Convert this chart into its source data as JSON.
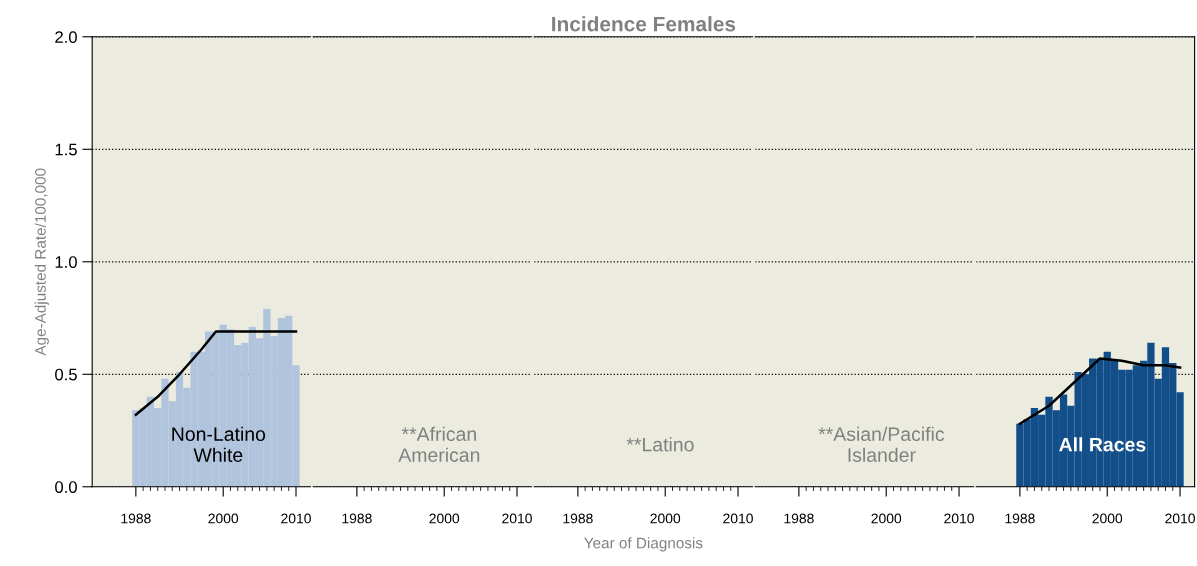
{
  "chart_data": [
    {
      "type": "bar",
      "ylabel": "Age-Adjusted Rate/100,000",
      "annotations": [
        "Non-Latino\nWhite"
      ],
      "x": [
        1988,
        1989,
        1990,
        1991,
        1992,
        1993,
        1994,
        1995,
        1996,
        1997,
        1998,
        1999,
        2000,
        2001,
        2002,
        2003,
        2004,
        2005,
        2006,
        2007,
        2008,
        2009,
        2010
      ],
      "series": [
        {
          "color": "#b0c4de",
          "values": [
            0.34,
            0.35,
            0.4,
            0.35,
            0.48,
            0.38,
            0.51,
            0.44,
            0.6,
            0.6,
            0.69,
            0.69,
            0.72,
            0.7,
            0.63,
            0.64,
            0.71,
            0.66,
            0.79,
            0.67,
            0.75,
            0.76,
            0.54
          ]
        },
        {
          "type": "line",
          "color": "#000000",
          "x": [
            1988,
            1991,
            1994,
            1997,
            1999,
            2010
          ],
          "values": [
            0.32,
            0.4,
            0.5,
            0.61,
            0.69,
            0.69
          ]
        }
      ],
      "xlim": [
        1982,
        2012
      ],
      "xticks": [
        1988,
        {
          "value": 1989,
          "label": null
        },
        {
          "value": 1990,
          "label": null
        },
        {
          "value": 1991,
          "label": null
        },
        {
          "value": 1992,
          "label": null
        },
        {
          "value": 1993,
          "label": null
        },
        {
          "value": 1994,
          "label": null
        },
        {
          "value": 1995,
          "label": null
        },
        {
          "value": 1996,
          "label": null
        },
        {
          "value": 1997,
          "label": null
        },
        {
          "value": 1998,
          "label": null
        },
        {
          "value": 1999,
          "label": null
        },
        2000,
        {
          "value": 2001,
          "label": null
        },
        {
          "value": 2002,
          "label": null
        },
        {
          "value": 2003,
          "label": null
        },
        {
          "value": 2004,
          "label": null
        },
        {
          "value": 2005,
          "label": null
        },
        {
          "value": 2006,
          "label": null
        },
        {
          "value": 2007,
          "label": null
        },
        {
          "value": 2008,
          "label": null
        },
        {
          "value": 2009,
          "label": null
        },
        2010
      ],
      "ylim": [
        0,
        2
      ],
      "yticks": [
        {
          "value": 0,
          "label": "0.0"
        },
        {
          "value": 0.5,
          "label": "0.5"
        },
        {
          "value": 1,
          "label": "1.0"
        },
        {
          "value": 1.5,
          "label": "1.5"
        },
        {
          "value": 2,
          "label": "2.0"
        }
      ],
      "grid": "y",
      "legend": false
    },
    {
      "type": "bar",
      "annotations": [
        "**African\nAmerican"
      ],
      "xlim": [
        1982,
        2012
      ],
      "xticks": [
        1988,
        {
          "value": 1989,
          "label": null
        },
        {
          "value": 1990,
          "label": null
        },
        {
          "value": 1991,
          "label": null
        },
        {
          "value": 1992,
          "label": null
        },
        {
          "value": 1993,
          "label": null
        },
        {
          "value": 1994,
          "label": null
        },
        {
          "value": 1995,
          "label": null
        },
        {
          "value": 1996,
          "label": null
        },
        {
          "value": 1997,
          "label": null
        },
        {
          "value": 1998,
          "label": null
        },
        {
          "value": 1999,
          "label": null
        },
        2000,
        {
          "value": 2001,
          "label": null
        },
        {
          "value": 2002,
          "label": null
        },
        {
          "value": 2003,
          "label": null
        },
        {
          "value": 2004,
          "label": null
        },
        {
          "value": 2005,
          "label": null
        },
        {
          "value": 2006,
          "label": null
        },
        {
          "value": 2007,
          "label": null
        },
        {
          "value": 2008,
          "label": null
        },
        {
          "value": 2009,
          "label": null
        },
        2010
      ],
      "ylim": [
        0,
        2
      ],
      "tick_labels": "x",
      "grid": "y",
      "legend": false
    },
    {
      "type": "bar",
      "title": "Incidence Females",
      "xlabel": "Year of Diagnosis",
      "annotations": [
        "**Latino"
      ],
      "xlim": [
        1982,
        2012
      ],
      "xticks": [
        1988,
        {
          "value": 1989,
          "label": null
        },
        {
          "value": 1990,
          "label": null
        },
        {
          "value": 1991,
          "label": null
        },
        {
          "value": 1992,
          "label": null
        },
        {
          "value": 1993,
          "label": null
        },
        {
          "value": 1994,
          "label": null
        },
        {
          "value": 1995,
          "label": null
        },
        {
          "value": 1996,
          "label": null
        },
        {
          "value": 1997,
          "label": null
        },
        {
          "value": 1998,
          "label": null
        },
        {
          "value": 1999,
          "label": null
        },
        2000,
        {
          "value": 2001,
          "label": null
        },
        {
          "value": 2002,
          "label": null
        },
        {
          "value": 2003,
          "label": null
        },
        {
          "value": 2004,
          "label": null
        },
        {
          "value": 2005,
          "label": null
        },
        {
          "value": 2006,
          "label": null
        },
        {
          "value": 2007,
          "label": null
        },
        {
          "value": 2008,
          "label": null
        },
        {
          "value": 2009,
          "label": null
        },
        2010
      ],
      "ylim": [
        0,
        2
      ],
      "tick_labels": "x",
      "grid": "y",
      "legend": false
    },
    {
      "type": "bar",
      "annotations": [
        "**Asian/Pacific\nIslander"
      ],
      "xlim": [
        1982,
        2012
      ],
      "xticks": [
        1988,
        {
          "value": 1989,
          "label": null
        },
        {
          "value": 1990,
          "label": null
        },
        {
          "value": 1991,
          "label": null
        },
        {
          "value": 1992,
          "label": null
        },
        {
          "value": 1993,
          "label": null
        },
        {
          "value": 1994,
          "label": null
        },
        {
          "value": 1995,
          "label": null
        },
        {
          "value": 1996,
          "label": null
        },
        {
          "value": 1997,
          "label": null
        },
        {
          "value": 1998,
          "label": null
        },
        {
          "value": 1999,
          "label": null
        },
        2000,
        {
          "value": 2001,
          "label": null
        },
        {
          "value": 2002,
          "label": null
        },
        {
          "value": 2003,
          "label": null
        },
        {
          "value": 2004,
          "label": null
        },
        {
          "value": 2005,
          "label": null
        },
        {
          "value": 2006,
          "label": null
        },
        {
          "value": 2007,
          "label": null
        },
        {
          "value": 2008,
          "label": null
        },
        {
          "value": 2009,
          "label": null
        },
        2010
      ],
      "ylim": [
        0,
        2
      ],
      "tick_labels": "x",
      "grid": "y",
      "legend": false
    },
    {
      "type": "bar",
      "annotations": [
        "All Races"
      ],
      "x": [
        1988,
        1989,
        1990,
        1991,
        1992,
        1993,
        1994,
        1995,
        1996,
        1997,
        1998,
        1999,
        2000,
        2001,
        2002,
        2003,
        2004,
        2005,
        2006,
        2007,
        2008,
        2009,
        2010
      ],
      "series": [
        {
          "color": "#124e8a",
          "values": [
            0.28,
            0.3,
            0.35,
            0.32,
            0.4,
            0.34,
            0.41,
            0.36,
            0.51,
            0.5,
            0.57,
            0.57,
            0.6,
            0.56,
            0.52,
            0.52,
            0.54,
            0.56,
            0.64,
            0.48,
            0.62,
            0.55,
            0.42
          ]
        },
        {
          "type": "line",
          "color": "#000000",
          "x": [
            1988,
            1992,
            1995,
            1999,
            2002,
            2005,
            2008,
            2010
          ],
          "values": [
            0.28,
            0.36,
            0.45,
            0.57,
            0.56,
            0.54,
            0.54,
            0.53
          ]
        }
      ],
      "xlim": [
        1982,
        2012
      ],
      "xticks": [
        1988,
        {
          "value": 1989,
          "label": null
        },
        {
          "value": 1990,
          "label": null
        },
        {
          "value": 1991,
          "label": null
        },
        {
          "value": 1992,
          "label": null
        },
        {
          "value": 1993,
          "label": null
        },
        {
          "value": 1994,
          "label": null
        },
        {
          "value": 1995,
          "label": null
        },
        {
          "value": 1996,
          "label": null
        },
        {
          "value": 1997,
          "label": null
        },
        {
          "value": 1998,
          "label": null
        },
        {
          "value": 1999,
          "label": null
        },
        2000,
        {
          "value": 2001,
          "label": null
        },
        {
          "value": 2002,
          "label": null
        },
        {
          "value": 2003,
          "label": null
        },
        {
          "value": 2004,
          "label": null
        },
        {
          "value": 2005,
          "label": null
        },
        {
          "value": 2006,
          "label": null
        },
        {
          "value": 2007,
          "label": null
        },
        {
          "value": 2008,
          "label": null
        },
        {
          "value": 2009,
          "label": null
        },
        2010
      ],
      "ylim": [
        0,
        2
      ],
      "tick_labels": "x",
      "grid": "y",
      "legend": false
    }
  ]
}
